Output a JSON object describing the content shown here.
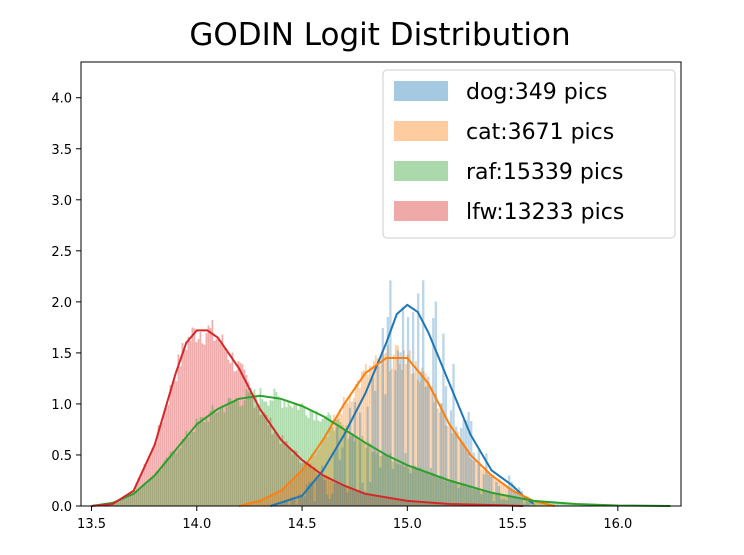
{
  "chart_data": {
    "type": "histogram",
    "title": "GODIN Logit Distribution",
    "xlabel": "",
    "ylabel": "",
    "xlim": [
      13.45,
      16.3
    ],
    "ylim": [
      0,
      4.35
    ],
    "x_ticks": [
      13.5,
      14.0,
      14.5,
      15.0,
      15.5,
      16.0
    ],
    "x_tick_labels": [
      "13.5",
      "14.0",
      "14.5",
      "15.0",
      "15.5",
      "16.0"
    ],
    "y_ticks": [
      0.0,
      0.5,
      1.0,
      1.5,
      2.0,
      2.5,
      3.0,
      3.5,
      4.0
    ],
    "y_tick_labels": [
      "0.0",
      "0.5",
      "1.0",
      "1.5",
      "2.0",
      "2.5",
      "3.0",
      "3.5",
      "4.0"
    ],
    "grid": false,
    "legend_position": "top-right",
    "series": [
      {
        "name": "dog:349 pics",
        "color": "#1f77b4",
        "kde_x": [
          14.35,
          14.5,
          14.6,
          14.7,
          14.8,
          14.9,
          14.95,
          15.0,
          15.05,
          15.1,
          15.2,
          15.3,
          15.4,
          15.5,
          15.55,
          15.6
        ],
        "kde_y": [
          0.0,
          0.1,
          0.35,
          0.7,
          1.1,
          1.6,
          1.88,
          1.97,
          1.9,
          1.7,
          1.2,
          0.7,
          0.35,
          0.2,
          0.1,
          0.02
        ]
      },
      {
        "name": "cat:3671 pics",
        "color": "#ff7f0e",
        "kde_x": [
          14.2,
          14.3,
          14.4,
          14.5,
          14.6,
          14.7,
          14.8,
          14.9,
          15.0,
          15.1,
          15.2,
          15.3,
          15.4,
          15.5,
          15.6,
          15.7
        ],
        "kde_y": [
          0.0,
          0.05,
          0.15,
          0.35,
          0.65,
          1.0,
          1.3,
          1.45,
          1.45,
          1.2,
          0.8,
          0.5,
          0.3,
          0.15,
          0.05,
          0.0
        ]
      },
      {
        "name": "raf:15339 pics",
        "color": "#2ca02c",
        "kde_x": [
          13.5,
          13.6,
          13.7,
          13.8,
          13.9,
          14.0,
          14.1,
          14.2,
          14.3,
          14.4,
          14.5,
          14.6,
          14.7,
          14.8,
          14.9,
          15.0,
          15.2,
          15.4,
          15.6,
          15.8,
          16.0,
          16.25
        ],
        "kde_y": [
          0.0,
          0.03,
          0.12,
          0.3,
          0.55,
          0.8,
          0.95,
          1.05,
          1.08,
          1.05,
          0.98,
          0.88,
          0.75,
          0.62,
          0.5,
          0.4,
          0.25,
          0.13,
          0.05,
          0.02,
          0.005,
          0.0
        ]
      },
      {
        "name": "lfw:13233 pics",
        "color": "#d62728",
        "kde_x": [
          13.5,
          13.6,
          13.7,
          13.8,
          13.9,
          13.95,
          14.0,
          14.05,
          14.1,
          14.2,
          14.3,
          14.4,
          14.5,
          14.6,
          14.7,
          14.8,
          15.0,
          15.2,
          15.4,
          15.55
        ],
        "kde_y": [
          0.0,
          0.02,
          0.15,
          0.6,
          1.3,
          1.6,
          1.72,
          1.72,
          1.65,
          1.35,
          0.95,
          0.65,
          0.45,
          0.3,
          0.2,
          0.12,
          0.05,
          0.02,
          0.01,
          0.0
        ]
      }
    ]
  }
}
